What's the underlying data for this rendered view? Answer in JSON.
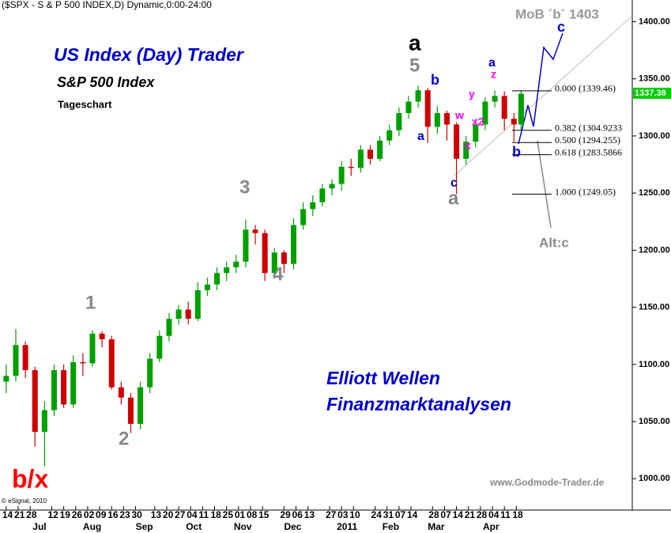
{
  "chart_data": {
    "type": "candlestick",
    "title": "($SPX - S & P 500 INDEX,D) Dynamic,0:00-24:00",
    "headline": "US Index (Day) Trader",
    "subtitle": "S&P 500 Index",
    "period": "Tageschart",
    "footer_lines": [
      "Elliott Wellen",
      "Finanzmarktanalysen"
    ],
    "source": "www.Godmode-Trader.de",
    "copyright": "© eSignal, 2010",
    "up_color": "#00a000",
    "down_color": "#d00000",
    "x": [
      0,
      4,
      8,
      12,
      16,
      20,
      24,
      28,
      32,
      36,
      40,
      44,
      48,
      52,
      56,
      60,
      64,
      68,
      72,
      76,
      80,
      84,
      88,
      92,
      96,
      100,
      104,
      108,
      112,
      116,
      120,
      124,
      128,
      132,
      136,
      140,
      144,
      148,
      152,
      156,
      160,
      164,
      168,
      172,
      176,
      180,
      184,
      188,
      192,
      196,
      200,
      204,
      208,
      212,
      215
    ],
    "open": [
      1085,
      1090,
      1117,
      1095,
      1041,
      1060,
      1095,
      1065,
      1102,
      1101,
      1127,
      1122,
      1080,
      1071,
      1048,
      1080,
      1105,
      1125,
      1140,
      1148,
      1140,
      1165,
      1170,
      1180,
      1185,
      1190,
      1218,
      1215,
      1180,
      1198,
      1188,
      1222,
      1236,
      1242,
      1254,
      1258,
      1273,
      1272,
      1288,
      1280,
      1296,
      1305,
      1320,
      1330,
      1340,
      1308,
      1320,
      1310,
      1280,
      1295,
      1310,
      1330,
      1335,
      1315,
      1310
    ],
    "high": [
      1100,
      1131,
      1120,
      1098,
      1068,
      1100,
      1100,
      1108,
      1110,
      1130,
      1129,
      1125,
      1085,
      1075,
      1085,
      1110,
      1130,
      1145,
      1152,
      1155,
      1172,
      1176,
      1185,
      1190,
      1196,
      1227,
      1222,
      1218,
      1202,
      1200,
      1228,
      1242,
      1248,
      1258,
      1262,
      1278,
      1280,
      1292,
      1292,
      1300,
      1310,
      1325,
      1335,
      1344,
      1342,
      1326,
      1322,
      1312,
      1300,
      1315,
      1334,
      1340,
      1339,
      1320,
      1340
    ],
    "low": [
      1075,
      1085,
      1088,
      1028,
      1011,
      1055,
      1062,
      1062,
      1090,
      1098,
      1115,
      1078,
      1065,
      1040,
      1043,
      1075,
      1102,
      1120,
      1135,
      1135,
      1138,
      1160,
      1165,
      1173,
      1180,
      1185,
      1205,
      1173,
      1175,
      1180,
      1183,
      1218,
      1230,
      1238,
      1248,
      1252,
      1265,
      1268,
      1275,
      1278,
      1292,
      1300,
      1315,
      1325,
      1294,
      1302,
      1296,
      1249,
      1275,
      1290,
      1305,
      1325,
      1305,
      1295,
      1305
    ],
    "close": [
      1090,
      1117,
      1095,
      1041,
      1060,
      1095,
      1065,
      1102,
      1101,
      1127,
      1122,
      1080,
      1071,
      1048,
      1080,
      1105,
      1125,
      1140,
      1148,
      1140,
      1165,
      1170,
      1180,
      1185,
      1190,
      1218,
      1215,
      1180,
      1198,
      1188,
      1222,
      1236,
      1242,
      1254,
      1258,
      1273,
      1272,
      1288,
      1280,
      1296,
      1305,
      1320,
      1330,
      1340,
      1308,
      1320,
      1310,
      1280,
      1295,
      1310,
      1330,
      1335,
      1315,
      1310,
      1337
    ],
    "last_price": 1337.38,
    "last_price_color": "#00cc00",
    "xlim": [
      -2.6,
      261.4
    ],
    "ylim": [
      976,
      1419
    ],
    "yticks": [
      {
        "value": 1000,
        "label": "1000.00"
      },
      {
        "value": 1050,
        "label": "1050.00"
      },
      {
        "value": 1100,
        "label": "1100.00"
      },
      {
        "value": 1150,
        "label": "1150.00"
      },
      {
        "value": 1200,
        "label": "1200.00"
      },
      {
        "value": 1250,
        "label": "1250.00"
      },
      {
        "value": 1300,
        "label": "1300.00"
      },
      {
        "value": 1350,
        "label": "1350.00"
      },
      {
        "value": 1400,
        "label": "1400.00"
      }
    ],
    "xticks": [
      {
        "value": 0,
        "label": "14"
      },
      {
        "value": 5,
        "label": "21"
      },
      {
        "value": 10,
        "label": "28"
      },
      {
        "value": 19,
        "label": "12"
      },
      {
        "value": 24,
        "label": "19"
      },
      {
        "value": 29,
        "label": "26"
      },
      {
        "value": 34,
        "label": "02"
      },
      {
        "value": 39,
        "label": "09"
      },
      {
        "value": 44,
        "label": "16"
      },
      {
        "value": 49,
        "label": "23"
      },
      {
        "value": 54,
        "label": "30"
      },
      {
        "value": 62,
        "label": "13"
      },
      {
        "value": 67,
        "label": "20"
      },
      {
        "value": 72,
        "label": "27"
      },
      {
        "value": 77,
        "label": "04"
      },
      {
        "value": 82,
        "label": "11"
      },
      {
        "value": 87,
        "label": "18"
      },
      {
        "value": 92,
        "label": "25"
      },
      {
        "value": 97,
        "label": "01"
      },
      {
        "value": 102,
        "label": "08"
      },
      {
        "value": 107,
        "label": "15"
      },
      {
        "value": 116,
        "label": "29"
      },
      {
        "value": 121,
        "label": "06"
      },
      {
        "value": 126,
        "label": "13"
      },
      {
        "value": 135,
        "label": "27"
      },
      {
        "value": 140,
        "label": "03"
      },
      {
        "value": 145,
        "label": "10"
      },
      {
        "value": 154,
        "label": "24"
      },
      {
        "value": 159,
        "label": "31"
      },
      {
        "value": 164,
        "label": "07"
      },
      {
        "value": 169,
        "label": "14"
      },
      {
        "value": 178,
        "label": "28"
      },
      {
        "value": 183,
        "label": "07"
      },
      {
        "value": 188,
        "label": "14"
      },
      {
        "value": 193,
        "label": "21"
      },
      {
        "value": 198,
        "label": "28"
      },
      {
        "value": 203,
        "label": "04"
      },
      {
        "value": 208,
        "label": "11"
      },
      {
        "value": 213,
        "label": "18"
      }
    ],
    "months": [
      {
        "value": 13,
        "label": "Jul"
      },
      {
        "value": 34,
        "label": "Aug"
      },
      {
        "value": 56,
        "label": "Sep"
      },
      {
        "value": 77,
        "label": "Oct"
      },
      {
        "value": 97,
        "label": "Nov"
      },
      {
        "value": 118,
        "label": "Dec"
      },
      {
        "value": 140,
        "label": "2011"
      },
      {
        "value": 159,
        "label": "Feb"
      },
      {
        "value": 178,
        "label": "Mar"
      },
      {
        "value": 201,
        "label": "Apr"
      }
    ],
    "fib_levels": [
      {
        "value": 1339.46,
        "label": "0.000 (1339.46)"
      },
      {
        "value": 1304.9233,
        "label": "0.382 (1304.9233"
      },
      {
        "value": 1294.255,
        "label": "0.500 (1294.255)"
      },
      {
        "value": 1283.5866,
        "label": "0.618 (1283.5866"
      },
      {
        "value": 1249.05,
        "label": "1.000 (1249.05)"
      }
    ],
    "wave_labels": [
      {
        "text": "b/x",
        "color": "#ff0000"
      },
      {
        "text": "1",
        "color": "#888888"
      },
      {
        "text": "2",
        "color": "#888888"
      },
      {
        "text": "3",
        "color": "#888888"
      },
      {
        "text": "4",
        "color": "#888888"
      },
      {
        "text": "5",
        "color": "#888888"
      },
      {
        "text": "a",
        "color": "#000000"
      },
      {
        "text": "a",
        "color": "#0000cc"
      },
      {
        "text": "b",
        "color": "#0000cc"
      },
      {
        "text": "c",
        "color": "#0000cc"
      },
      {
        "text": "a",
        "color": "#888888"
      },
      {
        "text": "w",
        "color": "#ff00ff"
      },
      {
        "text": "x",
        "color": "#ff00ff"
      },
      {
        "text": "y",
        "color": "#ff00ff"
      },
      {
        "text": "x2",
        "color": "#ff00ff"
      },
      {
        "text": "z",
        "color": "#ff00ff"
      },
      {
        "text": "a",
        "color": "#0000cc"
      },
      {
        "text": "b",
        "color": "#0000cc"
      },
      {
        "text": "c",
        "color": "#0000cc"
      },
      {
        "text": "MoB ´b´ 1403",
        "color": "#999999"
      },
      {
        "text": "Alt:c",
        "color": "#888888"
      }
    ]
  }
}
